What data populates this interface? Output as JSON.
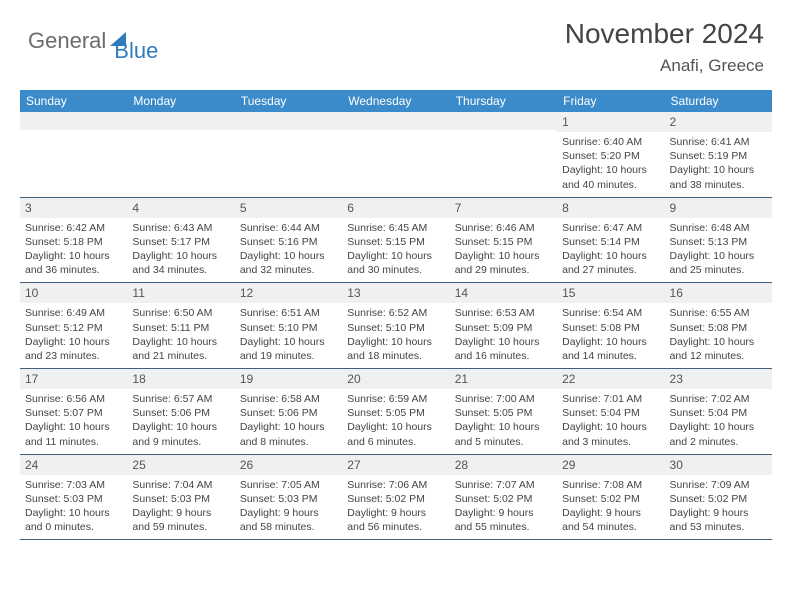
{
  "brand": {
    "general": "General",
    "blue": "Blue"
  },
  "title": "November 2024",
  "location": "Anafi, Greece",
  "dayNames": [
    "Sunday",
    "Monday",
    "Tuesday",
    "Wednesday",
    "Thursday",
    "Friday",
    "Saturday"
  ],
  "colors": {
    "header_bg": "#3b8bca",
    "daynum_bg": "#eef0f2",
    "text": "#444"
  },
  "weeks": [
    [
      {
        "n": "",
        "sr": "",
        "ss": "",
        "dl": ""
      },
      {
        "n": "",
        "sr": "",
        "ss": "",
        "dl": ""
      },
      {
        "n": "",
        "sr": "",
        "ss": "",
        "dl": ""
      },
      {
        "n": "",
        "sr": "",
        "ss": "",
        "dl": ""
      },
      {
        "n": "",
        "sr": "",
        "ss": "",
        "dl": ""
      },
      {
        "n": "1",
        "sr": "Sunrise: 6:40 AM",
        "ss": "Sunset: 5:20 PM",
        "dl": "Daylight: 10 hours and 40 minutes."
      },
      {
        "n": "2",
        "sr": "Sunrise: 6:41 AM",
        "ss": "Sunset: 5:19 PM",
        "dl": "Daylight: 10 hours and 38 minutes."
      }
    ],
    [
      {
        "n": "3",
        "sr": "Sunrise: 6:42 AM",
        "ss": "Sunset: 5:18 PM",
        "dl": "Daylight: 10 hours and 36 minutes."
      },
      {
        "n": "4",
        "sr": "Sunrise: 6:43 AM",
        "ss": "Sunset: 5:17 PM",
        "dl": "Daylight: 10 hours and 34 minutes."
      },
      {
        "n": "5",
        "sr": "Sunrise: 6:44 AM",
        "ss": "Sunset: 5:16 PM",
        "dl": "Daylight: 10 hours and 32 minutes."
      },
      {
        "n": "6",
        "sr": "Sunrise: 6:45 AM",
        "ss": "Sunset: 5:15 PM",
        "dl": "Daylight: 10 hours and 30 minutes."
      },
      {
        "n": "7",
        "sr": "Sunrise: 6:46 AM",
        "ss": "Sunset: 5:15 PM",
        "dl": "Daylight: 10 hours and 29 minutes."
      },
      {
        "n": "8",
        "sr": "Sunrise: 6:47 AM",
        "ss": "Sunset: 5:14 PM",
        "dl": "Daylight: 10 hours and 27 minutes."
      },
      {
        "n": "9",
        "sr": "Sunrise: 6:48 AM",
        "ss": "Sunset: 5:13 PM",
        "dl": "Daylight: 10 hours and 25 minutes."
      }
    ],
    [
      {
        "n": "10",
        "sr": "Sunrise: 6:49 AM",
        "ss": "Sunset: 5:12 PM",
        "dl": "Daylight: 10 hours and 23 minutes."
      },
      {
        "n": "11",
        "sr": "Sunrise: 6:50 AM",
        "ss": "Sunset: 5:11 PM",
        "dl": "Daylight: 10 hours and 21 minutes."
      },
      {
        "n": "12",
        "sr": "Sunrise: 6:51 AM",
        "ss": "Sunset: 5:10 PM",
        "dl": "Daylight: 10 hours and 19 minutes."
      },
      {
        "n": "13",
        "sr": "Sunrise: 6:52 AM",
        "ss": "Sunset: 5:10 PM",
        "dl": "Daylight: 10 hours and 18 minutes."
      },
      {
        "n": "14",
        "sr": "Sunrise: 6:53 AM",
        "ss": "Sunset: 5:09 PM",
        "dl": "Daylight: 10 hours and 16 minutes."
      },
      {
        "n": "15",
        "sr": "Sunrise: 6:54 AM",
        "ss": "Sunset: 5:08 PM",
        "dl": "Daylight: 10 hours and 14 minutes."
      },
      {
        "n": "16",
        "sr": "Sunrise: 6:55 AM",
        "ss": "Sunset: 5:08 PM",
        "dl": "Daylight: 10 hours and 12 minutes."
      }
    ],
    [
      {
        "n": "17",
        "sr": "Sunrise: 6:56 AM",
        "ss": "Sunset: 5:07 PM",
        "dl": "Daylight: 10 hours and 11 minutes."
      },
      {
        "n": "18",
        "sr": "Sunrise: 6:57 AM",
        "ss": "Sunset: 5:06 PM",
        "dl": "Daylight: 10 hours and 9 minutes."
      },
      {
        "n": "19",
        "sr": "Sunrise: 6:58 AM",
        "ss": "Sunset: 5:06 PM",
        "dl": "Daylight: 10 hours and 8 minutes."
      },
      {
        "n": "20",
        "sr": "Sunrise: 6:59 AM",
        "ss": "Sunset: 5:05 PM",
        "dl": "Daylight: 10 hours and 6 minutes."
      },
      {
        "n": "21",
        "sr": "Sunrise: 7:00 AM",
        "ss": "Sunset: 5:05 PM",
        "dl": "Daylight: 10 hours and 5 minutes."
      },
      {
        "n": "22",
        "sr": "Sunrise: 7:01 AM",
        "ss": "Sunset: 5:04 PM",
        "dl": "Daylight: 10 hours and 3 minutes."
      },
      {
        "n": "23",
        "sr": "Sunrise: 7:02 AM",
        "ss": "Sunset: 5:04 PM",
        "dl": "Daylight: 10 hours and 2 minutes."
      }
    ],
    [
      {
        "n": "24",
        "sr": "Sunrise: 7:03 AM",
        "ss": "Sunset: 5:03 PM",
        "dl": "Daylight: 10 hours and 0 minutes."
      },
      {
        "n": "25",
        "sr": "Sunrise: 7:04 AM",
        "ss": "Sunset: 5:03 PM",
        "dl": "Daylight: 9 hours and 59 minutes."
      },
      {
        "n": "26",
        "sr": "Sunrise: 7:05 AM",
        "ss": "Sunset: 5:03 PM",
        "dl": "Daylight: 9 hours and 58 minutes."
      },
      {
        "n": "27",
        "sr": "Sunrise: 7:06 AM",
        "ss": "Sunset: 5:02 PM",
        "dl": "Daylight: 9 hours and 56 minutes."
      },
      {
        "n": "28",
        "sr": "Sunrise: 7:07 AM",
        "ss": "Sunset: 5:02 PM",
        "dl": "Daylight: 9 hours and 55 minutes."
      },
      {
        "n": "29",
        "sr": "Sunrise: 7:08 AM",
        "ss": "Sunset: 5:02 PM",
        "dl": "Daylight: 9 hours and 54 minutes."
      },
      {
        "n": "30",
        "sr": "Sunrise: 7:09 AM",
        "ss": "Sunset: 5:02 PM",
        "dl": "Daylight: 9 hours and 53 minutes."
      }
    ]
  ]
}
